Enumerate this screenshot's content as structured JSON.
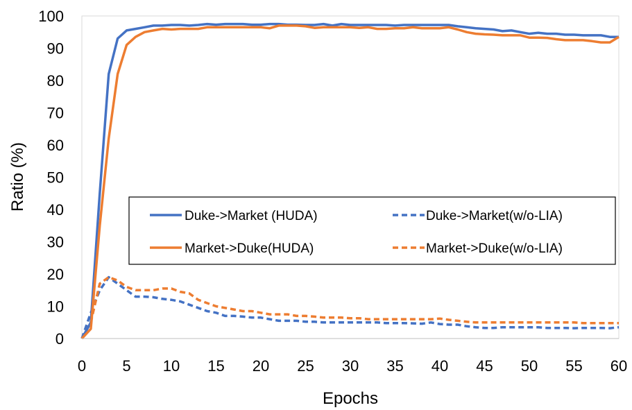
{
  "chart_data": {
    "type": "line",
    "xlabel": "Epochs",
    "ylabel": "Ratio (%)",
    "xlim": [
      0,
      60
    ],
    "ylim": [
      0,
      100
    ],
    "xticks": [
      0,
      5,
      10,
      15,
      20,
      25,
      30,
      35,
      40,
      45,
      50,
      55,
      60
    ],
    "yticks": [
      0,
      10,
      20,
      30,
      40,
      50,
      60,
      70,
      80,
      90,
      100
    ],
    "grid": false,
    "legend_position": "center-right",
    "series": [
      {
        "name": "Duke->Market (HUDA)",
        "color": "#4472C4",
        "dash": "solid",
        "x": [
          0,
          1,
          2,
          3,
          4,
          5,
          6,
          7,
          8,
          9,
          10,
          11,
          12,
          13,
          14,
          15,
          16,
          17,
          18,
          19,
          20,
          21,
          22,
          23,
          24,
          25,
          26,
          27,
          28,
          29,
          30,
          31,
          32,
          33,
          34,
          35,
          36,
          37,
          38,
          39,
          40,
          41,
          42,
          43,
          44,
          45,
          46,
          47,
          48,
          49,
          50,
          51,
          52,
          53,
          54,
          55,
          56,
          57,
          58,
          59,
          60
        ],
        "y": [
          0,
          5,
          45,
          82,
          93,
          95.5,
          96,
          96.5,
          97,
          97,
          97.2,
          97.2,
          97,
          97.2,
          97.5,
          97.3,
          97.5,
          97.5,
          97.5,
          97.3,
          97.3,
          97.5,
          97.5,
          97.3,
          97.3,
          97.2,
          97.2,
          97.5,
          97,
          97.5,
          97.2,
          97.2,
          97.2,
          97.2,
          97.2,
          97,
          97.2,
          97.2,
          97.2,
          97.2,
          97.2,
          97.2,
          96.8,
          96.5,
          96.2,
          96,
          95.8,
          95.3,
          95.5,
          95,
          94.5,
          94.8,
          94.5,
          94.5,
          94.2,
          94.2,
          94,
          94,
          94,
          93.5,
          93.5
        ]
      },
      {
        "name": "Market->Duke(HUDA)",
        "color": "#ED7D31",
        "dash": "solid",
        "x": [
          0,
          1,
          2,
          3,
          4,
          5,
          6,
          7,
          8,
          9,
          10,
          11,
          12,
          13,
          14,
          15,
          16,
          17,
          18,
          19,
          20,
          21,
          22,
          23,
          24,
          25,
          26,
          27,
          28,
          29,
          30,
          31,
          32,
          33,
          34,
          35,
          36,
          37,
          38,
          39,
          40,
          41,
          42,
          43,
          44,
          45,
          46,
          47,
          48,
          49,
          50,
          51,
          52,
          53,
          54,
          55,
          56,
          57,
          58,
          59,
          60
        ],
        "y": [
          0,
          3,
          35,
          62,
          82,
          91,
          93.5,
          95,
          95.5,
          96,
          95.8,
          96,
          96,
          96,
          96.5,
          96.5,
          96.5,
          96.5,
          96.5,
          96.5,
          96.5,
          96.2,
          97,
          97,
          97,
          96.8,
          96.3,
          96.5,
          96.5,
          96.5,
          96.5,
          96.3,
          96.5,
          96,
          96,
          96.2,
          96.2,
          96.5,
          96.2,
          96.2,
          96.2,
          96.5,
          95.8,
          95,
          94.5,
          94.3,
          94.2,
          94,
          94,
          94,
          93.3,
          93.3,
          93.2,
          92.8,
          92.5,
          92.5,
          92.5,
          92.2,
          91.8,
          91.8,
          93.5
        ]
      },
      {
        "name": "Duke->Market(w/o-LIA)",
        "color": "#4472C4",
        "dash": "dashed",
        "x": [
          0,
          1,
          2,
          3,
          4,
          5,
          6,
          7,
          8,
          9,
          10,
          11,
          12,
          13,
          14,
          15,
          16,
          17,
          18,
          19,
          20,
          21,
          22,
          23,
          24,
          25,
          26,
          27,
          28,
          29,
          30,
          31,
          32,
          33,
          34,
          35,
          36,
          37,
          38,
          39,
          40,
          41,
          42,
          43,
          44,
          45,
          46,
          47,
          48,
          49,
          50,
          51,
          52,
          53,
          54,
          55,
          56,
          57,
          58,
          59,
          60
        ],
        "y": [
          0,
          8,
          15,
          19,
          17,
          15,
          13,
          13,
          12.8,
          12.3,
          12,
          11.5,
          10.5,
          9.5,
          8.5,
          8,
          7,
          7,
          6.8,
          6.5,
          6.5,
          6,
          5.5,
          5.5,
          5.5,
          5.2,
          5.2,
          5,
          5,
          5,
          5,
          5,
          5,
          5,
          4.8,
          4.8,
          4.8,
          4.7,
          4.6,
          5,
          4.5,
          4.3,
          4.3,
          3.8,
          3.5,
          3.3,
          3.3,
          3.5,
          3.5,
          3.5,
          3.5,
          3.5,
          3.3,
          3.3,
          3.3,
          3.2,
          3.3,
          3.3,
          3.3,
          3.2,
          3.5
        ]
      },
      {
        "name": "Market->Duke(w/o-LIA)",
        "color": "#ED7D31",
        "dash": "dashed",
        "x": [
          0,
          1,
          2,
          3,
          4,
          5,
          6,
          7,
          8,
          9,
          10,
          11,
          12,
          13,
          14,
          15,
          16,
          17,
          18,
          19,
          20,
          21,
          22,
          23,
          24,
          25,
          26,
          27,
          28,
          29,
          30,
          31,
          32,
          33,
          34,
          35,
          36,
          37,
          38,
          39,
          40,
          41,
          42,
          43,
          44,
          45,
          46,
          47,
          48,
          49,
          50,
          51,
          52,
          53,
          54,
          55,
          56,
          57,
          58,
          59,
          60
        ],
        "y": [
          0,
          5,
          17,
          19,
          18,
          16,
          15,
          15,
          15,
          15.5,
          15.5,
          14.5,
          14,
          12,
          11,
          10,
          9.5,
          9,
          8.5,
          8.5,
          8,
          7.5,
          7.5,
          7.5,
          7,
          7,
          6.8,
          6.5,
          6.5,
          6.5,
          6.3,
          6.3,
          6,
          6,
          6,
          6,
          6,
          6,
          6,
          6,
          6.2,
          5.8,
          5.5,
          5.2,
          5,
          5,
          5,
          5,
          5,
          5,
          5,
          5,
          5,
          5,
          5,
          5,
          4.8,
          4.8,
          4.8,
          4.8,
          4.8
        ]
      }
    ]
  }
}
